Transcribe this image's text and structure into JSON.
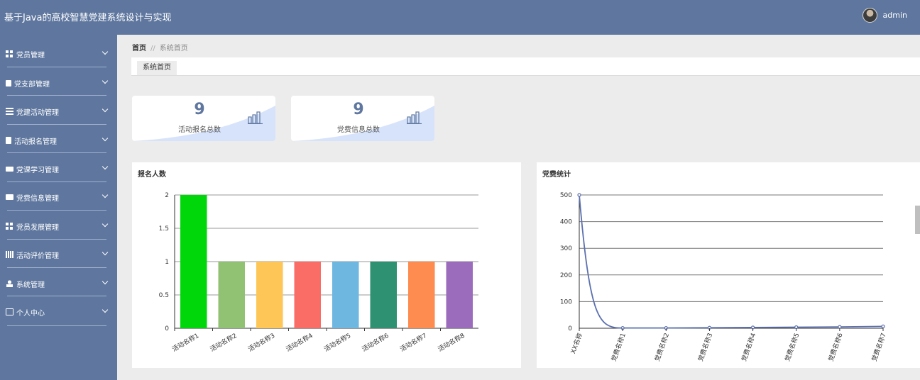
{
  "header": {
    "title": "基于Java的高校智慧党建系统设计与实现",
    "username": "admin"
  },
  "sidebar": {
    "items": [
      {
        "label": "党员管理",
        "icon": "grid-icon"
      },
      {
        "label": "党支部管理",
        "icon": "flag-icon"
      },
      {
        "label": "党建活动管理",
        "icon": "sliders-icon"
      },
      {
        "label": "活动报名管理",
        "icon": "document-icon"
      },
      {
        "label": "党课学习管理",
        "icon": "ticket-icon"
      },
      {
        "label": "党费信息管理",
        "icon": "money-icon"
      },
      {
        "label": "党员发展管理",
        "icon": "grid-icon"
      },
      {
        "label": "活动评价管理",
        "icon": "book-icon"
      },
      {
        "label": "系统管理",
        "icon": "person-icon"
      },
      {
        "label": "个人中心",
        "icon": "card-icon"
      }
    ]
  },
  "breadcrumb": {
    "home": "首页",
    "separator": "//",
    "current": "系统首页"
  },
  "tabs": [
    {
      "label": "系统首页"
    }
  ],
  "stats": [
    {
      "value": "9",
      "label": "活动报名总数"
    },
    {
      "value": "9",
      "label": "党费信息总数"
    }
  ],
  "colors": {
    "header": "#5f779f",
    "sidebar": "#5f779f",
    "line": "#5b70ae",
    "wave": "#d6e3fb"
  },
  "chart_data": [
    {
      "type": "bar",
      "title": "报名人数",
      "categories": [
        "活动名称1",
        "活动名称2",
        "活动名称3",
        "活动名称4",
        "活动名称5",
        "活动名称6",
        "活动名称7",
        "活动名称8"
      ],
      "values": [
        2,
        1,
        1,
        1,
        1,
        1,
        1,
        1
      ],
      "colors": [
        "#00d70b",
        "#91c273",
        "#fdc656",
        "#fa6d67",
        "#6eb7e0",
        "#2e9272",
        "#fe8b4f",
        "#9c6cbc"
      ],
      "yticks": [
        "0",
        "0.5",
        "1",
        "1.5",
        "2"
      ],
      "ylim": [
        0,
        2
      ],
      "grid": true
    },
    {
      "type": "line",
      "title": "党费统计",
      "categories": [
        "XX名称",
        "党费名称1",
        "党费名称2",
        "党费名称3",
        "党费名称4",
        "党费名称5",
        "党费名称6",
        "党费名称7"
      ],
      "values": [
        500,
        1,
        1,
        2,
        3,
        4,
        5,
        7
      ],
      "yticks": [
        "0",
        "100",
        "200",
        "300",
        "400",
        "500"
      ],
      "ylim": [
        0,
        500
      ],
      "grid": true,
      "smooth": true
    }
  ]
}
